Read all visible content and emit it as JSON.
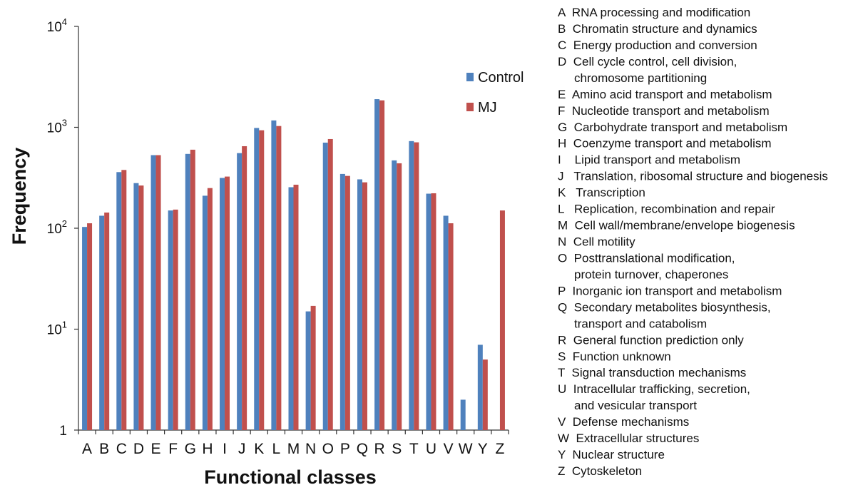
{
  "chart_data": {
    "type": "bar",
    "xlabel": "Functional classes",
    "ylabel": "Frequency",
    "y_scale": "log",
    "ylim": [
      1,
      10000
    ],
    "yticks": [
      {
        "base": "1",
        "exp": ""
      },
      {
        "base": "10",
        "exp": "1"
      },
      {
        "base": "10",
        "exp": "2"
      },
      {
        "base": "10",
        "exp": "3"
      },
      {
        "base": "10",
        "exp": "4"
      }
    ],
    "categories": [
      "A",
      "B",
      "C",
      "D",
      "E",
      "F",
      "G",
      "H",
      "I",
      "J",
      "K",
      "L",
      "M",
      "N",
      "O",
      "P",
      "Q",
      "R",
      "S",
      "T",
      "U",
      "V",
      "W",
      "Y",
      "Z"
    ],
    "series": [
      {
        "name": "Control",
        "color": "#4F81BD",
        "values": [
          103,
          133,
          360,
          280,
          530,
          150,
          545,
          210,
          315,
          555,
          985,
          1170,
          255,
          15,
          705,
          345,
          305,
          1900,
          470,
          730,
          220,
          133,
          2,
          7,
          null
        ]
      },
      {
        "name": "MJ",
        "color": "#C0504D",
        "values": [
          112,
          143,
          378,
          265,
          530,
          153,
          600,
          250,
          325,
          650,
          935,
          1030,
          270,
          17,
          765,
          330,
          285,
          1850,
          440,
          710,
          222,
          112,
          null,
          5,
          150
        ]
      }
    ],
    "legend_position": "top-right",
    "grid": false,
    "category_key": [
      {
        "lines": [
          "A  RNA processing and modification"
        ]
      },
      {
        "lines": [
          "B  Chromatin structure and dynamics"
        ]
      },
      {
        "lines": [
          "C  Energy production and conversion"
        ]
      },
      {
        "lines": [
          "D  Cell cycle control, cell division,",
          "chromosome partitioning"
        ]
      },
      {
        "lines": [
          "E  Amino acid transport and metabolism"
        ]
      },
      {
        "lines": [
          "F  Nucleotide transport and metabolism"
        ]
      },
      {
        "lines": [
          "G  Carbohydrate transport and metabolism"
        ]
      },
      {
        "lines": [
          "H  Coenzyme transport and metabolism"
        ]
      },
      {
        "lines": [
          "I    Lipid transport and metabolism"
        ]
      },
      {
        "lines": [
          "J   Translation, ribosomal structure and biogenesis"
        ]
      },
      {
        "lines": [
          "K   Transcription"
        ]
      },
      {
        "lines": [
          "L   Replication, recombination and repair"
        ]
      },
      {
        "lines": [
          "M  Cell wall/membrane/envelope biogenesis"
        ]
      },
      {
        "lines": [
          "N  Cell motility"
        ]
      },
      {
        "lines": [
          "O  Posttranslational modification,",
          "protein turnover, chaperones"
        ]
      },
      {
        "lines": [
          "P  Inorganic ion transport and metabolism"
        ]
      },
      {
        "lines": [
          "Q  Secondary metabolites biosynthesis,",
          "transport and catabolism"
        ]
      },
      {
        "lines": [
          "R  General function prediction only"
        ]
      },
      {
        "lines": [
          "S  Function unknown"
        ]
      },
      {
        "lines": [
          "T  Signal transduction mechanisms"
        ]
      },
      {
        "lines": [
          "U  Intracellular trafficking, secretion,",
          "and vesicular transport"
        ]
      },
      {
        "lines": [
          "V  Defense mechanisms"
        ]
      },
      {
        "lines": [
          "W  Extracellular structures"
        ]
      },
      {
        "lines": [
          "Y  Nuclear structure"
        ]
      },
      {
        "lines": [
          "Z  Cytoskeleton"
        ]
      }
    ]
  }
}
